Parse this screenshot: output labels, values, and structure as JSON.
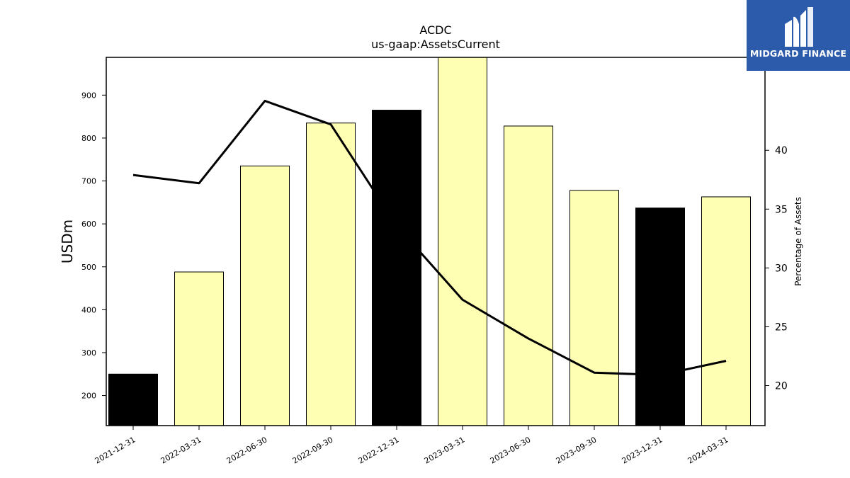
{
  "chart_data": {
    "type": "bar",
    "title": "ACDC",
    "subtitle": "us-gaap:AssetsCurrent",
    "ylabel": "USDm",
    "y2label": "Percentage of Assets",
    "categories": [
      "2021-12-31",
      "2022-03-31",
      "2022-06-30",
      "2022-09-30",
      "2022-12-31",
      "2023-03-31",
      "2023-06-30",
      "2023-09-30",
      "2023-12-31",
      "2024-03-31"
    ],
    "ylim": [
      130,
      988
    ],
    "y2lim": [
      16.6,
      47.9
    ],
    "yticks": [
      200,
      300,
      400,
      500,
      600,
      700,
      800,
      900
    ],
    "y2ticks": [
      20,
      25,
      30,
      35,
      40
    ],
    "series": [
      {
        "type": "bar",
        "axis": "left",
        "values": [
          250,
          488,
          735,
          835,
          865,
          988,
          828,
          678,
          637,
          663
        ],
        "colors": [
          "#000000",
          "#ffffb3",
          "#ffffb3",
          "#ffffb3",
          "#000000",
          "#ffffb3",
          "#ffffb3",
          "#ffffb3",
          "#000000",
          "#ffffb3"
        ]
      },
      {
        "type": "line",
        "axis": "right",
        "values": [
          37.9,
          37.2,
          44.2,
          42.2,
          33.6,
          27.3,
          24.0,
          21.1,
          20.9,
          22.1
        ],
        "color": "#000000"
      }
    ],
    "grid": false
  },
  "logo": {
    "text": "MIDGARD FINANCE",
    "background": "#2d5bab"
  }
}
